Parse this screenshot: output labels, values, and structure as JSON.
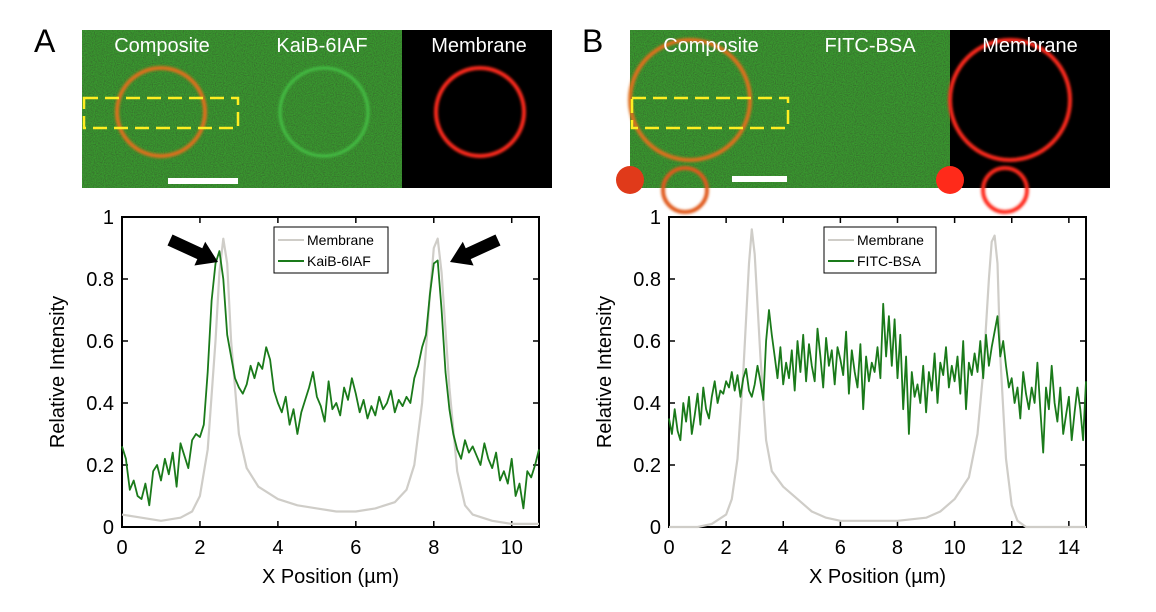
{
  "panels": [
    {
      "label": "A",
      "images": [
        {
          "label": "Composite",
          "kind": "composite"
        },
        {
          "label": "KaiB-6IAF",
          "kind": "green"
        },
        {
          "label": "Membrane",
          "kind": "red"
        }
      ]
    },
    {
      "label": "B",
      "images": [
        {
          "label": "Composite",
          "kind": "composite"
        },
        {
          "label": "FITC-BSA",
          "kind": "green"
        },
        {
          "label": "Membrane",
          "kind": "red"
        }
      ]
    }
  ],
  "colors": {
    "membrane_line": "#cfcdc8",
    "protein_line": "#1a7a1a",
    "micro_bg_green": "#1b5a1b",
    "micro_red": "#ff2a1a",
    "roi_box": "#ffee22",
    "arrow": "#000000"
  },
  "chart_data": [
    {
      "type": "line",
      "title": "",
      "xlabel": "X Position (µm)",
      "ylabel": "Relative Intensity",
      "xlim": [
        0,
        10.7
      ],
      "ylim": [
        0,
        1
      ],
      "xticks": [
        0,
        2,
        4,
        6,
        8,
        10
      ],
      "yticks": [
        0,
        0.2,
        0.4,
        0.6,
        0.8,
        1
      ],
      "ytick_labels": [
        "0",
        "0.2",
        "0.4",
        "0.6",
        "0.8",
        "1"
      ],
      "legend_position": "top-center",
      "arrows_at": [
        2.6,
        8.1
      ],
      "series": [
        {
          "name": "Membrane",
          "x": [
            0,
            0.5,
            1.0,
            1.5,
            1.8,
            2.0,
            2.2,
            2.4,
            2.5,
            2.6,
            2.7,
            2.8,
            3.0,
            3.2,
            3.5,
            4.0,
            4.5,
            5.0,
            5.5,
            6.0,
            6.5,
            7.0,
            7.3,
            7.5,
            7.7,
            7.9,
            8.0,
            8.1,
            8.2,
            8.4,
            8.6,
            8.8,
            9.0,
            9.5,
            10.0,
            10.7
          ],
          "y": [
            0.04,
            0.03,
            0.02,
            0.03,
            0.05,
            0.1,
            0.25,
            0.6,
            0.82,
            0.93,
            0.85,
            0.6,
            0.3,
            0.19,
            0.13,
            0.09,
            0.07,
            0.06,
            0.05,
            0.05,
            0.06,
            0.08,
            0.12,
            0.2,
            0.4,
            0.75,
            0.9,
            0.93,
            0.82,
            0.45,
            0.18,
            0.07,
            0.04,
            0.02,
            0.01,
            0.01
          ]
        },
        {
          "name": "KaiB-6IAF",
          "x": [
            0,
            0.1,
            0.2,
            0.3,
            0.4,
            0.5,
            0.6,
            0.7,
            0.8,
            0.9,
            1.0,
            1.1,
            1.2,
            1.3,
            1.4,
            1.5,
            1.6,
            1.7,
            1.8,
            1.9,
            2.0,
            2.1,
            2.2,
            2.3,
            2.4,
            2.5,
            2.6,
            2.7,
            2.8,
            2.9,
            3.0,
            3.1,
            3.2,
            3.3,
            3.4,
            3.5,
            3.6,
            3.7,
            3.8,
            3.9,
            4.0,
            4.1,
            4.2,
            4.3,
            4.4,
            4.5,
            4.6,
            4.7,
            4.8,
            4.9,
            5.0,
            5.1,
            5.2,
            5.3,
            5.4,
            5.5,
            5.6,
            5.7,
            5.8,
            5.9,
            6.0,
            6.1,
            6.2,
            6.3,
            6.4,
            6.5,
            6.6,
            6.7,
            6.8,
            6.9,
            7.0,
            7.1,
            7.2,
            7.3,
            7.4,
            7.5,
            7.6,
            7.7,
            7.8,
            7.9,
            8.0,
            8.1,
            8.2,
            8.3,
            8.4,
            8.5,
            8.6,
            8.7,
            8.8,
            8.9,
            9.0,
            9.1,
            9.2,
            9.3,
            9.4,
            9.5,
            9.6,
            9.7,
            9.8,
            9.9,
            10.0,
            10.1,
            10.2,
            10.3,
            10.4,
            10.5,
            10.6,
            10.7
          ],
          "y": [
            0.26,
            0.22,
            0.12,
            0.15,
            0.1,
            0.09,
            0.14,
            0.07,
            0.18,
            0.2,
            0.15,
            0.22,
            0.17,
            0.24,
            0.13,
            0.27,
            0.23,
            0.19,
            0.28,
            0.3,
            0.29,
            0.33,
            0.5,
            0.73,
            0.85,
            0.89,
            0.8,
            0.62,
            0.55,
            0.48,
            0.45,
            0.43,
            0.46,
            0.52,
            0.48,
            0.53,
            0.51,
            0.58,
            0.54,
            0.44,
            0.4,
            0.37,
            0.42,
            0.33,
            0.38,
            0.3,
            0.37,
            0.41,
            0.45,
            0.5,
            0.42,
            0.39,
            0.34,
            0.47,
            0.38,
            0.4,
            0.36,
            0.45,
            0.41,
            0.48,
            0.43,
            0.37,
            0.41,
            0.35,
            0.39,
            0.36,
            0.42,
            0.38,
            0.4,
            0.44,
            0.37,
            0.41,
            0.39,
            0.42,
            0.4,
            0.48,
            0.52,
            0.58,
            0.62,
            0.75,
            0.85,
            0.86,
            0.7,
            0.5,
            0.38,
            0.3,
            0.25,
            0.22,
            0.28,
            0.24,
            0.26,
            0.23,
            0.2,
            0.27,
            0.22,
            0.19,
            0.24,
            0.15,
            0.18,
            0.14,
            0.22,
            0.1,
            0.14,
            0.06,
            0.18,
            0.16,
            0.2,
            0.25
          ]
        }
      ]
    },
    {
      "type": "line",
      "title": "",
      "xlabel": "X Position (µm)",
      "ylabel": "Relative Intensity",
      "xlim": [
        0,
        14.6
      ],
      "ylim": [
        0,
        1
      ],
      "xticks": [
        0,
        2,
        4,
        6,
        8,
        10,
        12,
        14
      ],
      "yticks": [
        0,
        0.2,
        0.4,
        0.6,
        0.8,
        1
      ],
      "ytick_labels": [
        "0",
        "0.2",
        "0.4",
        "0.6",
        "0.8",
        "1"
      ],
      "legend_position": "top-right",
      "series": [
        {
          "name": "Membrane",
          "x": [
            0,
            1.0,
            1.5,
            2.0,
            2.2,
            2.4,
            2.6,
            2.8,
            2.9,
            3.0,
            3.2,
            3.4,
            3.6,
            4.0,
            4.5,
            5.0,
            5.5,
            6.0,
            7.0,
            8.0,
            9.0,
            9.5,
            10.0,
            10.5,
            10.8,
            11.0,
            11.2,
            11.3,
            11.4,
            11.5,
            11.6,
            11.8,
            12.0,
            12.2,
            12.5,
            13.0,
            14.6
          ],
          "y": [
            0.0,
            0.0,
            0.01,
            0.04,
            0.09,
            0.22,
            0.5,
            0.85,
            0.96,
            0.88,
            0.55,
            0.28,
            0.18,
            0.13,
            0.09,
            0.05,
            0.03,
            0.02,
            0.02,
            0.02,
            0.03,
            0.05,
            0.09,
            0.16,
            0.3,
            0.5,
            0.8,
            0.92,
            0.94,
            0.85,
            0.55,
            0.22,
            0.07,
            0.02,
            0.0,
            0.0,
            0.0
          ]
        },
        {
          "name": "FITC-BSA",
          "x": [
            0,
            0.1,
            0.2,
            0.3,
            0.4,
            0.5,
            0.6,
            0.7,
            0.8,
            0.9,
            1.0,
            1.1,
            1.2,
            1.3,
            1.4,
            1.5,
            1.6,
            1.7,
            1.8,
            1.9,
            2.0,
            2.1,
            2.2,
            2.3,
            2.4,
            2.5,
            2.6,
            2.7,
            2.8,
            2.9,
            3.0,
            3.1,
            3.2,
            3.3,
            3.4,
            3.5,
            3.6,
            3.7,
            3.8,
            3.9,
            4.0,
            4.1,
            4.2,
            4.3,
            4.4,
            4.5,
            4.6,
            4.7,
            4.8,
            4.9,
            5.0,
            5.1,
            5.2,
            5.3,
            5.4,
            5.5,
            5.6,
            5.7,
            5.8,
            5.9,
            6.0,
            6.1,
            6.2,
            6.3,
            6.4,
            6.5,
            6.6,
            6.7,
            6.8,
            6.9,
            7.0,
            7.1,
            7.2,
            7.3,
            7.4,
            7.5,
            7.6,
            7.7,
            7.8,
            7.9,
            8.0,
            8.1,
            8.2,
            8.3,
            8.4,
            8.5,
            8.6,
            8.7,
            8.8,
            8.9,
            9.0,
            9.1,
            9.2,
            9.3,
            9.4,
            9.5,
            9.6,
            9.7,
            9.8,
            9.9,
            10.0,
            10.1,
            10.2,
            10.3,
            10.4,
            10.5,
            10.6,
            10.7,
            10.8,
            10.9,
            11.0,
            11.1,
            11.2,
            11.3,
            11.4,
            11.5,
            11.6,
            11.7,
            11.8,
            11.9,
            12.0,
            12.1,
            12.2,
            12.3,
            12.4,
            12.5,
            12.6,
            12.7,
            12.8,
            12.9,
            13.0,
            13.1,
            13.2,
            13.3,
            13.4,
            13.5,
            13.6,
            13.7,
            13.8,
            13.9,
            14.0,
            14.1,
            14.2,
            14.3,
            14.4,
            14.5,
            14.6
          ],
          "y": [
            0.35,
            0.3,
            0.38,
            0.31,
            0.28,
            0.4,
            0.34,
            0.42,
            0.3,
            0.36,
            0.43,
            0.33,
            0.45,
            0.38,
            0.35,
            0.42,
            0.47,
            0.4,
            0.44,
            0.43,
            0.47,
            0.45,
            0.5,
            0.44,
            0.49,
            0.42,
            0.48,
            0.51,
            0.44,
            0.42,
            0.46,
            0.52,
            0.47,
            0.41,
            0.6,
            0.7,
            0.62,
            0.55,
            0.48,
            0.58,
            0.46,
            0.53,
            0.48,
            0.57,
            0.44,
            0.6,
            0.5,
            0.62,
            0.47,
            0.59,
            0.52,
            0.47,
            0.64,
            0.55,
            0.45,
            0.61,
            0.52,
            0.57,
            0.46,
            0.58,
            0.54,
            0.49,
            0.63,
            0.43,
            0.57,
            0.5,
            0.45,
            0.59,
            0.38,
            0.55,
            0.47,
            0.53,
            0.5,
            0.58,
            0.48,
            0.72,
            0.55,
            0.68,
            0.52,
            0.67,
            0.48,
            0.62,
            0.38,
            0.55,
            0.3,
            0.5,
            0.42,
            0.46,
            0.4,
            0.52,
            0.37,
            0.5,
            0.44,
            0.56,
            0.4,
            0.53,
            0.49,
            0.58,
            0.45,
            0.52,
            0.47,
            0.55,
            0.43,
            0.6,
            0.38,
            0.53,
            0.49,
            0.56,
            0.5,
            0.6,
            0.48,
            0.62,
            0.52,
            0.58,
            0.63,
            0.68,
            0.55,
            0.6,
            0.52,
            0.45,
            0.48,
            0.4,
            0.45,
            0.35,
            0.5,
            0.43,
            0.38,
            0.45,
            0.4,
            0.53,
            0.38,
            0.24,
            0.45,
            0.38,
            0.52,
            0.4,
            0.34,
            0.45,
            0.3,
            0.36,
            0.42,
            0.28,
            0.37,
            0.45,
            0.38,
            0.28,
            0.47
          ]
        }
      ]
    }
  ]
}
